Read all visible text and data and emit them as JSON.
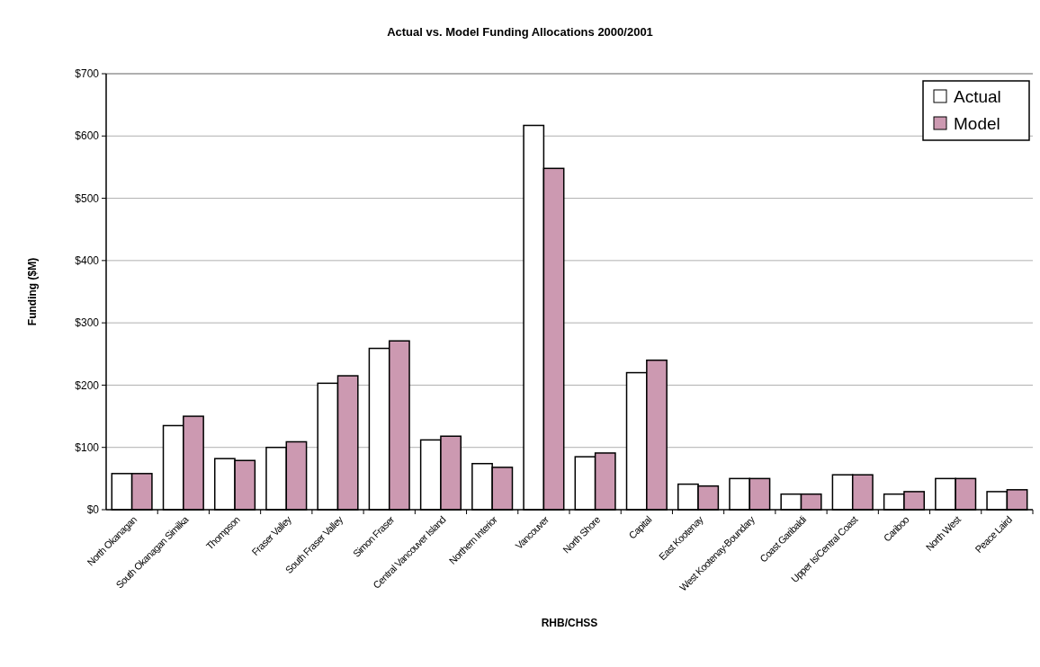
{
  "chart_data": {
    "type": "bar",
    "title": "Actual vs. Model Funding Allocations 2000/2001",
    "xlabel": "RHB/CHSS",
    "ylabel": "Funding ($M)",
    "categories": [
      "North Okanagan",
      "South Okanagan Similka",
      "Thompson",
      "Fraser Valley",
      "South Fraser Valley",
      "Simon Fraser",
      "Central Vancouver Island",
      "Northern Interior",
      "Vancouver",
      "North Shore",
      "Capital",
      "East Kootenay",
      "West Kootenay-Boundary",
      "Coast Garibaldi",
      "Upper Is/Central Coast",
      "Cariboo",
      "North West",
      "Peace Laird"
    ],
    "series": [
      {
        "name": "Actual",
        "color": "#ffffff",
        "values": [
          58,
          135,
          82,
          100,
          203,
          259,
          112,
          74,
          617,
          85,
          220,
          41,
          50,
          25,
          56,
          25,
          50,
          29
        ]
      },
      {
        "name": "Model",
        "color": "#cc99b1",
        "values": [
          58,
          150,
          79,
          109,
          215,
          271,
          118,
          68,
          548,
          91,
          240,
          38,
          50,
          25,
          56,
          29,
          50,
          32
        ]
      }
    ],
    "ylim": [
      0,
      700
    ],
    "yticks": [
      {
        "value": 0,
        "label": "$0"
      },
      {
        "value": 100,
        "label": "$100"
      },
      {
        "value": 200,
        "label": "$200"
      },
      {
        "value": 300,
        "label": "$300"
      },
      {
        "value": 400,
        "label": "$400"
      },
      {
        "value": 500,
        "label": "$500"
      },
      {
        "value": 600,
        "label": "$600"
      },
      {
        "value": 700,
        "label": "$700"
      }
    ],
    "grid": "y",
    "legend": "top right"
  }
}
